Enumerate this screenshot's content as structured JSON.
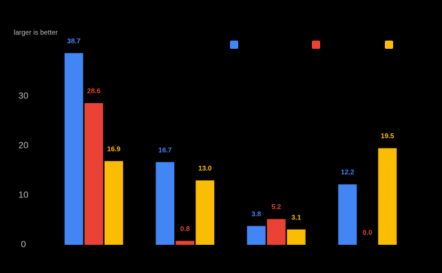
{
  "chart_data": {
    "type": "bar",
    "subtitle": "larger is better",
    "series": [
      {
        "color": "#4285f4",
        "values": [
          38.7,
          16.7,
          3.8,
          12.2
        ],
        "value_labels": [
          "38.7",
          "16.7",
          "3.8",
          "12.2"
        ]
      },
      {
        "color": "#ea4335",
        "values": [
          28.6,
          0.8,
          5.2,
          0.0
        ],
        "value_labels": [
          "28.6",
          "0.8",
          "5.2",
          "0.0"
        ]
      },
      {
        "color": "#fbbc04",
        "values": [
          16.9,
          13.0,
          3.1,
          19.5
        ],
        "value_labels": [
          "16.9",
          "13.0",
          "3.1",
          "19.5"
        ]
      }
    ],
    "ylim": [
      0,
      44
    ],
    "yticks": [
      0,
      10,
      20,
      30
    ],
    "grid": false
  }
}
